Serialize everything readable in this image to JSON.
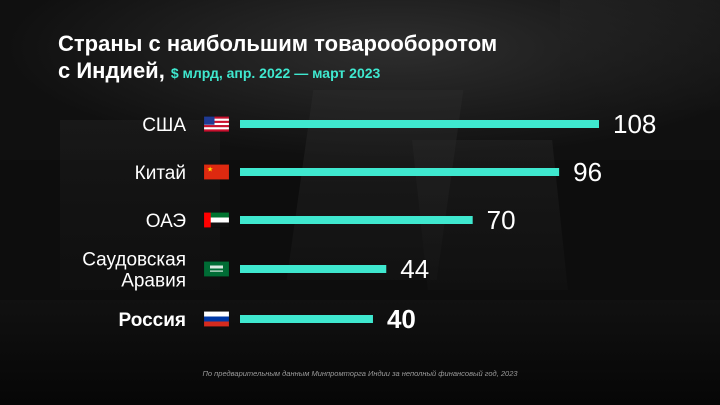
{
  "title": {
    "line1": "Страны с наибольшим товарооборотом",
    "line2": "с Индией,",
    "subtitle": "$ млрд, апр. 2022 — март 2023"
  },
  "footnote": "По предварительным данным Минпромторга Индии за неполный финансовый год, 2023",
  "colors": {
    "bar": "#3fe8cf",
    "background": "#0d0d0d",
    "text": "#ffffff",
    "accent": "#3fe8cf"
  },
  "chart_data": {
    "type": "bar",
    "orientation": "horizontal",
    "title": "Страны с наибольшим товарооборотом с Индией,",
    "subtitle": "$ млрд, апр. 2022 — март 2023",
    "categories": [
      "США",
      "Китай",
      "ОАЭ",
      "Саудовская Аравия",
      "Россия"
    ],
    "category_lines": [
      [
        "США"
      ],
      [
        "Китай"
      ],
      [
        "ОАЭ"
      ],
      [
        "Саудовская",
        "Аравия"
      ],
      [
        "Россия"
      ]
    ],
    "values": [
      108,
      96,
      70,
      44,
      40
    ],
    "value_labels": [
      "108",
      "96",
      "70",
      "44",
      "40"
    ],
    "highlighted": "Россия",
    "flags": [
      "us-flag-icon",
      "cn-flag-icon",
      "ae-flag-icon",
      "sa-flag-icon",
      "ru-flag-icon"
    ],
    "xlim": [
      0,
      108
    ],
    "grid": false,
    "legend": "none",
    "xlabel": "",
    "ylabel": ""
  }
}
